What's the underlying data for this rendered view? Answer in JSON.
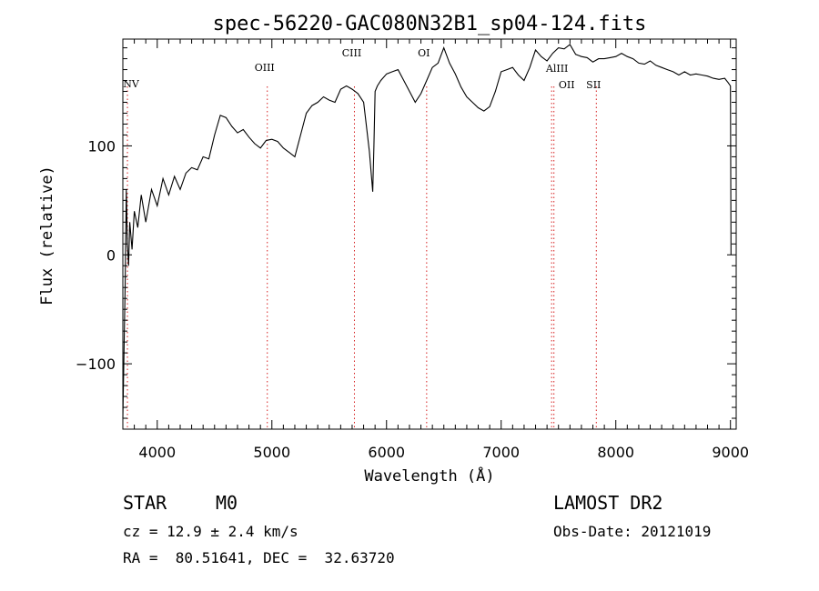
{
  "chart_data": {
    "type": "line",
    "title": "spec-56220-GAC080N32B1_sp04-124.fits",
    "xlabel": "Wavelength (Å)",
    "ylabel": "Flux (relative)",
    "xlim": [
      3700,
      9050
    ],
    "ylim": [
      -160,
      198
    ],
    "xticks": [
      4000,
      5000,
      6000,
      7000,
      8000,
      9000
    ],
    "yticks": [
      -100,
      0,
      100
    ],
    "grid": false,
    "series": [
      {
        "x": [
          3700,
          3720,
          3730,
          3740,
          3750,
          3760,
          3780,
          3800,
          3830,
          3860,
          3900,
          3950,
          4000,
          4050,
          4100,
          4150,
          4200,
          4250,
          4300,
          4350,
          4400,
          4450,
          4500,
          4550,
          4600,
          4650,
          4700,
          4750,
          4800,
          4850,
          4900,
          4950,
          5000,
          5050,
          5100,
          5150,
          5200,
          5250,
          5300,
          5350,
          5400,
          5450,
          5500,
          5550,
          5600,
          5650,
          5700,
          5750,
          5800,
          5850,
          5880,
          5890,
          5900,
          5920,
          5950,
          6000,
          6050,
          6100,
          6150,
          6200,
          6250,
          6300,
          6350,
          6400,
          6450,
          6500,
          6550,
          6600,
          6650,
          6700,
          6750,
          6800,
          6850,
          6900,
          6950,
          7000,
          7050,
          7100,
          7150,
          7200,
          7250,
          7300,
          7350,
          7400,
          7450,
          7500,
          7550,
          7600,
          7650,
          7700,
          7750,
          7800,
          7850,
          7900,
          7950,
          8000,
          8050,
          8100,
          8150,
          8200,
          8250,
          8300,
          8350,
          8400,
          8450,
          8500,
          8550,
          8600,
          8650,
          8700,
          8750,
          8800,
          8850,
          8900,
          8950,
          8980,
          9000,
          9005
        ],
        "values": [
          -150,
          -30,
          60,
          10,
          -10,
          30,
          5,
          40,
          25,
          55,
          30,
          60,
          45,
          70,
          55,
          72,
          60,
          75,
          80,
          78,
          90,
          88,
          110,
          128,
          126,
          118,
          112,
          115,
          108,
          102,
          98,
          105,
          106,
          104,
          98,
          94,
          90,
          110,
          130,
          137,
          140,
          145,
          142,
          140,
          152,
          155,
          152,
          148,
          140,
          95,
          58,
          100,
          150,
          155,
          160,
          166,
          168,
          170,
          160,
          150,
          140,
          148,
          160,
          172,
          176,
          190,
          176,
          166,
          154,
          145,
          140,
          135,
          132,
          136,
          150,
          168,
          170,
          172,
          165,
          160,
          172,
          188,
          182,
          178,
          185,
          190,
          189,
          193,
          184,
          182,
          181,
          177,
          180,
          180,
          181,
          182,
          185,
          182,
          180,
          176,
          175,
          178,
          174,
          172,
          170,
          168,
          165,
          168,
          165,
          166,
          165,
          164,
          162,
          161,
          162,
          158,
          155,
          0
        ]
      }
    ],
    "line_markers": [
      {
        "label": "NV",
        "wavelength": 3740
      },
      {
        "label": "OIII",
        "wavelength": 4960
      },
      {
        "label": "CIII",
        "wavelength": 5720
      },
      {
        "label": "OI",
        "wavelength": 6350
      },
      {
        "label": "AlIII",
        "wavelength": 7440
      },
      {
        "label": "OII",
        "wavelength": 7460
      },
      {
        "label": "SII",
        "wavelength": 7830
      }
    ]
  },
  "info": {
    "object_class": "STAR",
    "subclass": "M0",
    "survey": "LAMOST DR2",
    "redshift": "cz = 12.9 ± 2.4 km/s",
    "obs_date": "Obs-Date: 20121019",
    "coords": "RA =  80.51641, DEC =  32.63720"
  }
}
